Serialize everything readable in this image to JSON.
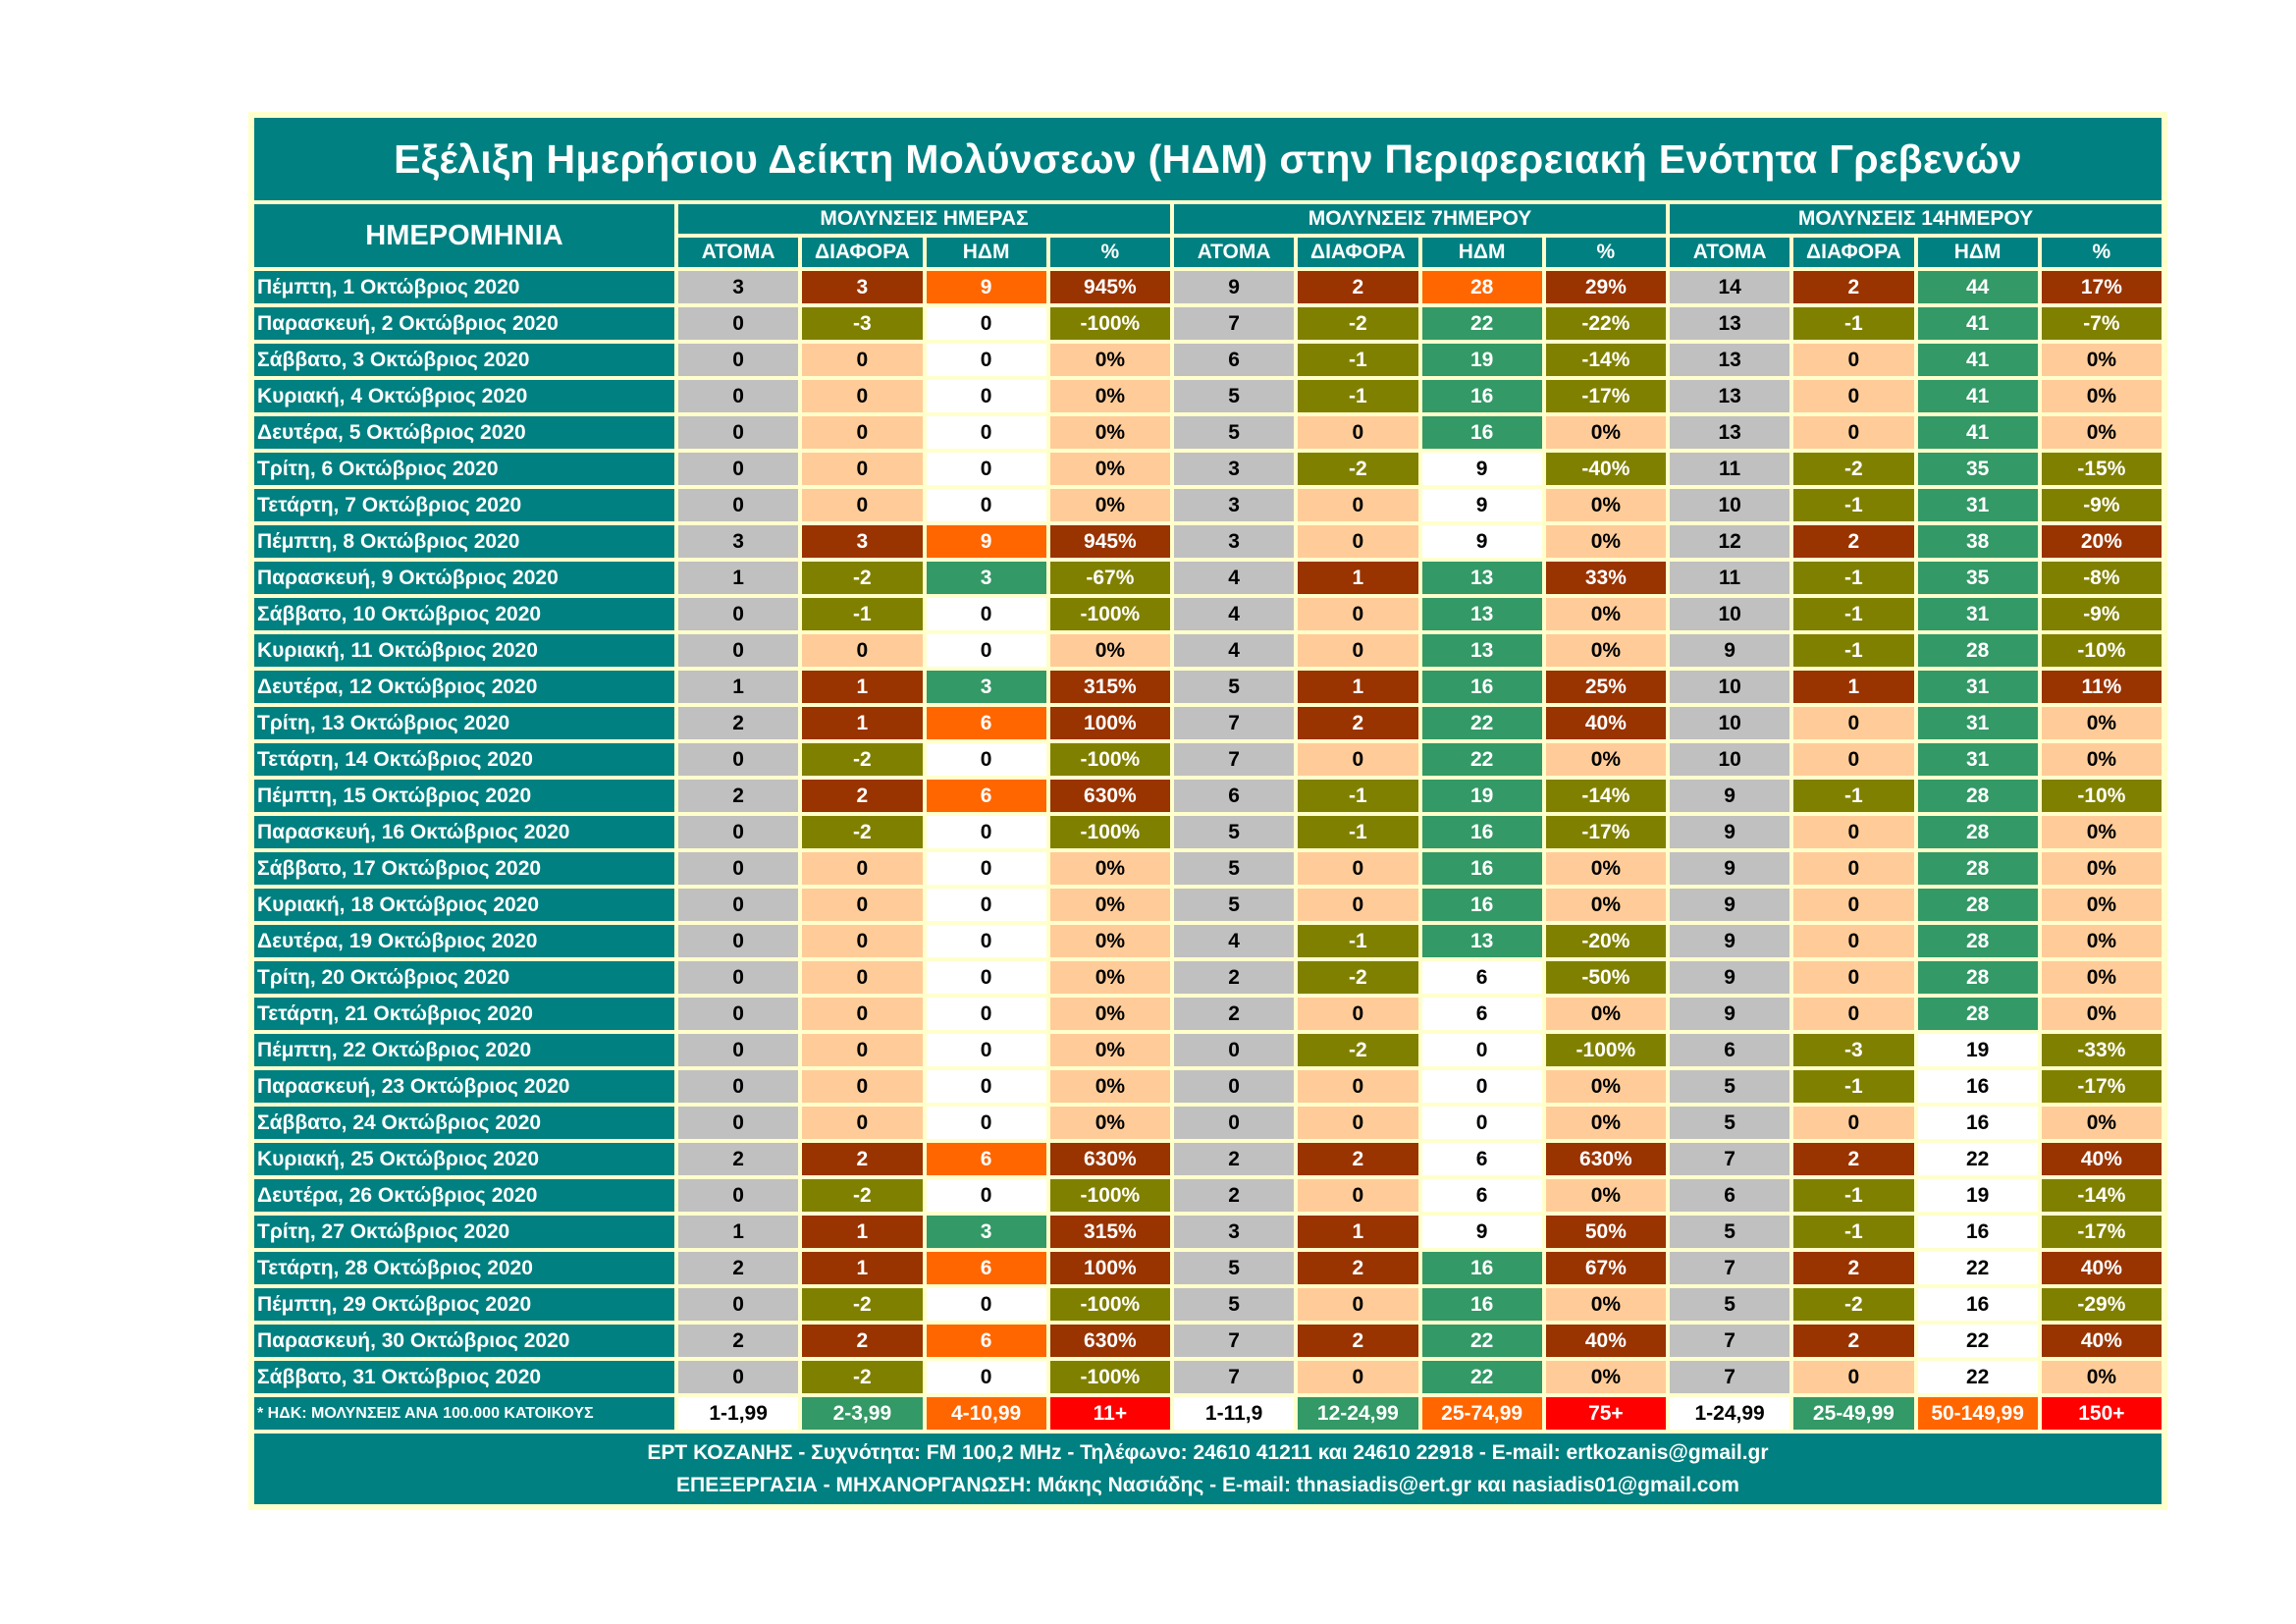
{
  "title": "Εξέλιξη Ημερήσιου Δείκτη Μολύνσεων (ΗΔΜ) στην Περιφερειακή Ενότητα Γρεβενών",
  "date_header": "ΗΜΕΡΟΜΗΝΙΑ",
  "groups": [
    "ΜΟΛΥΝΣΕΙΣ ΗΜΕΡΑΣ",
    "ΜΟΛΥΝΣΕΙΣ 7ΗΜΕΡΟΥ",
    "ΜΟΛΥΝΣΕΙΣ 14ΗΜΕΡΟΥ"
  ],
  "subheaders": [
    "ΑΤΟΜΑ",
    "ΔΙΑΦΟΡΑ",
    "ΗΔΜ",
    "%"
  ],
  "colors": {
    "teal": "#008080",
    "gray": "#c0c0c0",
    "positive": "#993300",
    "negative": "#808000",
    "zero": "#ffcc99",
    "band1": "#ffffff",
    "band2": "#339966",
    "band3": "#ff6600",
    "band4": "#ff0000",
    "background": "#ffffcc"
  },
  "hdm_thresholds": [
    [
      2,
      4,
      11
    ],
    [
      12,
      25,
      75
    ],
    [
      25,
      50,
      150
    ]
  ],
  "rows": [
    {
      "date": "Πέμπτη, 1 Οκτώβριος 2020",
      "cells": [
        "3",
        "3",
        "9",
        "945%",
        "9",
        "2",
        "28",
        "29%",
        "14",
        "2",
        "44",
        "17%"
      ]
    },
    {
      "date": "Παρασκευή, 2 Οκτώβριος 2020",
      "cells": [
        "0",
        "-3",
        "0",
        "-100%",
        "7",
        "-2",
        "22",
        "-22%",
        "13",
        "-1",
        "41",
        "-7%"
      ]
    },
    {
      "date": "Σάββατο, 3 Οκτώβριος 2020",
      "cells": [
        "0",
        "0",
        "0",
        "0%",
        "6",
        "-1",
        "19",
        "-14%",
        "13",
        "0",
        "41",
        "0%"
      ]
    },
    {
      "date": "Κυριακή, 4 Οκτώβριος 2020",
      "cells": [
        "0",
        "0",
        "0",
        "0%",
        "5",
        "-1",
        "16",
        "-17%",
        "13",
        "0",
        "41",
        "0%"
      ]
    },
    {
      "date": "Δευτέρα, 5 Οκτώβριος 2020",
      "cells": [
        "0",
        "0",
        "0",
        "0%",
        "5",
        "0",
        "16",
        "0%",
        "13",
        "0",
        "41",
        "0%"
      ]
    },
    {
      "date": "Τρίτη, 6 Οκτώβριος 2020",
      "cells": [
        "0",
        "0",
        "0",
        "0%",
        "3",
        "-2",
        "9",
        "-40%",
        "11",
        "-2",
        "35",
        "-15%"
      ]
    },
    {
      "date": "Τετάρτη, 7 Οκτώβριος 2020",
      "cells": [
        "0",
        "0",
        "0",
        "0%",
        "3",
        "0",
        "9",
        "0%",
        "10",
        "-1",
        "31",
        "-9%"
      ]
    },
    {
      "date": "Πέμπτη, 8 Οκτώβριος 2020",
      "cells": [
        "3",
        "3",
        "9",
        "945%",
        "3",
        "0",
        "9",
        "0%",
        "12",
        "2",
        "38",
        "20%"
      ]
    },
    {
      "date": "Παρασκευή, 9 Οκτώβριος 2020",
      "cells": [
        "1",
        "-2",
        "3",
        "-67%",
        "4",
        "1",
        "13",
        "33%",
        "11",
        "-1",
        "35",
        "-8%"
      ]
    },
    {
      "date": "Σάββατο, 10 Οκτώβριος 2020",
      "cells": [
        "0",
        "-1",
        "0",
        "-100%",
        "4",
        "0",
        "13",
        "0%",
        "10",
        "-1",
        "31",
        "-9%"
      ]
    },
    {
      "date": "Κυριακή, 11 Οκτώβριος 2020",
      "cells": [
        "0",
        "0",
        "0",
        "0%",
        "4",
        "0",
        "13",
        "0%",
        "9",
        "-1",
        "28",
        "-10%"
      ]
    },
    {
      "date": "Δευτέρα, 12 Οκτώβριος 2020",
      "cells": [
        "1",
        "1",
        "3",
        "315%",
        "5",
        "1",
        "16",
        "25%",
        "10",
        "1",
        "31",
        "11%"
      ]
    },
    {
      "date": "Τρίτη, 13 Οκτώβριος 2020",
      "cells": [
        "2",
        "1",
        "6",
        "100%",
        "7",
        "2",
        "22",
        "40%",
        "10",
        "0",
        "31",
        "0%"
      ]
    },
    {
      "date": "Τετάρτη, 14 Οκτώβριος 2020",
      "cells": [
        "0",
        "-2",
        "0",
        "-100%",
        "7",
        "0",
        "22",
        "0%",
        "10",
        "0",
        "31",
        "0%"
      ]
    },
    {
      "date": "Πέμπτη, 15 Οκτώβριος 2020",
      "cells": [
        "2",
        "2",
        "6",
        "630%",
        "6",
        "-1",
        "19",
        "-14%",
        "9",
        "-1",
        "28",
        "-10%"
      ]
    },
    {
      "date": "Παρασκευή, 16 Οκτώβριος 2020",
      "cells": [
        "0",
        "-2",
        "0",
        "-100%",
        "5",
        "-1",
        "16",
        "-17%",
        "9",
        "0",
        "28",
        "0%"
      ]
    },
    {
      "date": "Σάββατο, 17 Οκτώβριος 2020",
      "cells": [
        "0",
        "0",
        "0",
        "0%",
        "5",
        "0",
        "16",
        "0%",
        "9",
        "0",
        "28",
        "0%"
      ]
    },
    {
      "date": "Κυριακή, 18 Οκτώβριος 2020",
      "cells": [
        "0",
        "0",
        "0",
        "0%",
        "5",
        "0",
        "16",
        "0%",
        "9",
        "0",
        "28",
        "0%"
      ]
    },
    {
      "date": "Δευτέρα, 19 Οκτώβριος 2020",
      "cells": [
        "0",
        "0",
        "0",
        "0%",
        "4",
        "-1",
        "13",
        "-20%",
        "9",
        "0",
        "28",
        "0%"
      ]
    },
    {
      "date": "Τρίτη, 20 Οκτώβριος 2020",
      "cells": [
        "0",
        "0",
        "0",
        "0%",
        "2",
        "-2",
        "6",
        "-50%",
        "9",
        "0",
        "28",
        "0%"
      ]
    },
    {
      "date": "Τετάρτη, 21 Οκτώβριος 2020",
      "cells": [
        "0",
        "0",
        "0",
        "0%",
        "2",
        "0",
        "6",
        "0%",
        "9",
        "0",
        "28",
        "0%"
      ]
    },
    {
      "date": "Πέμπτη, 22 Οκτώβριος 2020",
      "cells": [
        "0",
        "0",
        "0",
        "0%",
        "0",
        "-2",
        "0",
        "-100%",
        "6",
        "-3",
        "19",
        "-33%"
      ]
    },
    {
      "date": "Παρασκευή, 23 Οκτώβριος 2020",
      "cells": [
        "0",
        "0",
        "0",
        "0%",
        "0",
        "0",
        "0",
        "0%",
        "5",
        "-1",
        "16",
        "-17%"
      ]
    },
    {
      "date": "Σάββατο, 24 Οκτώβριος 2020",
      "cells": [
        "0",
        "0",
        "0",
        "0%",
        "0",
        "0",
        "0",
        "0%",
        "5",
        "0",
        "16",
        "0%"
      ]
    },
    {
      "date": "Κυριακή, 25 Οκτώβριος 2020",
      "cells": [
        "2",
        "2",
        "6",
        "630%",
        "2",
        "2",
        "6",
        "630%",
        "7",
        "2",
        "22",
        "40%"
      ]
    },
    {
      "date": "Δευτέρα, 26 Οκτώβριος 2020",
      "cells": [
        "0",
        "-2",
        "0",
        "-100%",
        "2",
        "0",
        "6",
        "0%",
        "6",
        "-1",
        "19",
        "-14%"
      ]
    },
    {
      "date": "Τρίτη, 27 Οκτώβριος 2020",
      "cells": [
        "1",
        "1",
        "3",
        "315%",
        "3",
        "1",
        "9",
        "50%",
        "5",
        "-1",
        "16",
        "-17%"
      ]
    },
    {
      "date": "Τετάρτη, 28 Οκτώβριος 2020",
      "cells": [
        "2",
        "1",
        "6",
        "100%",
        "5",
        "2",
        "16",
        "67%",
        "7",
        "2",
        "22",
        "40%"
      ]
    },
    {
      "date": "Πέμπτη, 29 Οκτώβριος 2020",
      "cells": [
        "0",
        "-2",
        "0",
        "-100%",
        "5",
        "0",
        "16",
        "0%",
        "5",
        "-2",
        "16",
        "-29%"
      ]
    },
    {
      "date": "Παρασκευή, 30 Οκτώβριος 2020",
      "cells": [
        "2",
        "2",
        "6",
        "630%",
        "7",
        "2",
        "22",
        "40%",
        "7",
        "2",
        "22",
        "40%"
      ]
    },
    {
      "date": "Σάββατο, 31 Οκτώβριος 2020",
      "cells": [
        "0",
        "-2",
        "0",
        "-100%",
        "7",
        "0",
        "22",
        "0%",
        "7",
        "0",
        "22",
        "0%"
      ]
    }
  ],
  "legend": {
    "label": "* ΗΔΚ: ΜΟΛΥΝΣΕΙΣ ΑΝΑ 100.000 ΚΑΤΟΙΚΟΥΣ",
    "ranges": [
      "1-1,99",
      "2-3,99",
      "4-10,99",
      "11+",
      "1-11,9",
      "12-24,99",
      "25-74,99",
      "75+",
      "1-24,99",
      "25-49,99",
      "50-149,99",
      "150+"
    ]
  },
  "footer": {
    "line1": "ΕΡΤ ΚΟΖΑΝΗΣ  -  Συχνότητα:  FM 100,2 MHz  -  Τηλέφωνο:  24610 41211 και 24610 22918  -  E-mail: ertkozanis@gmail.gr",
    "line2": "ΕΠΕΞΕΡΓΑΣΙΑ  -  ΜΗΧΑΝΟΡΓΑΝΩΣΗ: Μάκης Νασιάδης  -  E-mail: thnasiadis@ert.gr και nasiadis01@gmail.com"
  }
}
